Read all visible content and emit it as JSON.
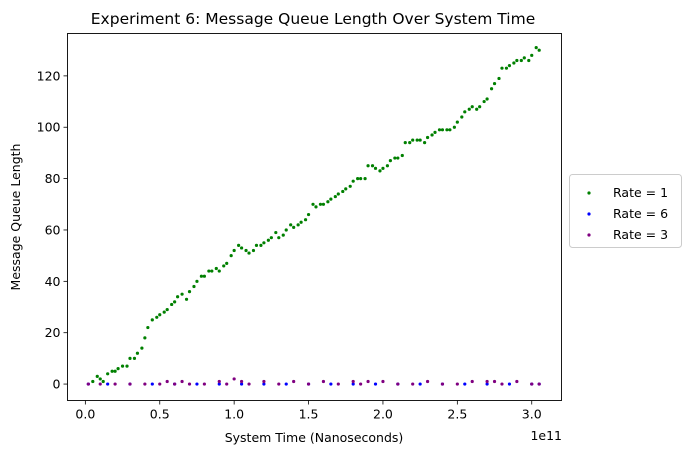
{
  "chart_data": {
    "type": "scatter",
    "title": "Experiment 6: Message Queue Length Over System Time",
    "xlabel": "System Time (Nanoseconds)",
    "ylabel": "Message Queue Length",
    "x_offset_label": "1e11",
    "xlim": [
      -0.12,
      3.2
    ],
    "ylim": [
      -6.4,
      136.5
    ],
    "x_ticks": [
      0.0,
      0.5,
      1.0,
      1.5,
      2.0,
      2.5,
      3.0
    ],
    "x_tick_labels": [
      "0.0",
      "0.5",
      "1.0",
      "1.5",
      "2.0",
      "2.5",
      "3.0"
    ],
    "y_ticks": [
      0,
      20,
      40,
      60,
      80,
      100,
      120
    ],
    "y_tick_labels": [
      "0",
      "20",
      "40",
      "60",
      "80",
      "100",
      "120"
    ],
    "grid": false,
    "legend_position": "center-right, outside plot",
    "series": [
      {
        "name": "Rate = 1",
        "color": "#008000",
        "x": [
          0.05,
          0.08,
          0.1,
          0.12,
          0.15,
          0.18,
          0.2,
          0.22,
          0.25,
          0.28,
          0.3,
          0.33,
          0.35,
          0.38,
          0.4,
          0.42,
          0.45,
          0.48,
          0.5,
          0.53,
          0.55,
          0.58,
          0.6,
          0.62,
          0.65,
          0.68,
          0.7,
          0.73,
          0.75,
          0.78,
          0.8,
          0.83,
          0.85,
          0.88,
          0.9,
          0.93,
          0.95,
          0.98,
          1.0,
          1.03,
          1.05,
          1.08,
          1.1,
          1.13,
          1.15,
          1.18,
          1.2,
          1.23,
          1.25,
          1.28,
          1.3,
          1.33,
          1.35,
          1.38,
          1.4,
          1.43,
          1.45,
          1.48,
          1.5,
          1.53,
          1.55,
          1.58,
          1.6,
          1.63,
          1.65,
          1.68,
          1.7,
          1.73,
          1.75,
          1.78,
          1.8,
          1.83,
          1.85,
          1.88,
          1.9,
          1.93,
          1.95,
          1.98,
          2.0,
          2.03,
          2.05,
          2.08,
          2.1,
          2.13,
          2.15,
          2.18,
          2.2,
          2.23,
          2.25,
          2.28,
          2.3,
          2.33,
          2.35,
          2.38,
          2.4,
          2.43,
          2.45,
          2.48,
          2.5,
          2.53,
          2.55,
          2.58,
          2.6,
          2.63,
          2.65,
          2.68,
          2.7,
          2.73,
          2.75,
          2.78,
          2.8,
          2.83,
          2.85,
          2.88,
          2.9,
          2.93,
          2.95,
          2.98,
          3.0,
          3.03,
          3.05
        ],
        "y": [
          1,
          3,
          2,
          1,
          4,
          5,
          5,
          6,
          7,
          7,
          10,
          10,
          12,
          14,
          18,
          22,
          25,
          26,
          27,
          28,
          29,
          31,
          32,
          34,
          35,
          33,
          36,
          38,
          40,
          42,
          42,
          44,
          44,
          45,
          44,
          46,
          47,
          50,
          52,
          54,
          53,
          52,
          51,
          52,
          54,
          54,
          55,
          56,
          57,
          59,
          57,
          58,
          60,
          62,
          61,
          62,
          63,
          64,
          66,
          70,
          69,
          70,
          70,
          71,
          72,
          73,
          74,
          75,
          76,
          77,
          79,
          80,
          80,
          80,
          85,
          85,
          84,
          83,
          84,
          85,
          87,
          88,
          88,
          89,
          94,
          94,
          95,
          95,
          95,
          94,
          96,
          97,
          98,
          99,
          99,
          99,
          99,
          100,
          102,
          104,
          106,
          107,
          108,
          107,
          108,
          110,
          111,
          115,
          117,
          119,
          123,
          123,
          124,
          125,
          126,
          126,
          127,
          126,
          128,
          131,
          130
        ]
      },
      {
        "name": "Rate = 6",
        "color": "#0000ff",
        "x": [
          0.02,
          0.15,
          0.3,
          0.45,
          0.6,
          0.75,
          0.9,
          1.05,
          1.2,
          1.35,
          1.5,
          1.65,
          1.8,
          1.95,
          2.1,
          2.25,
          2.4,
          2.55,
          2.7,
          2.85,
          3.0,
          3.05
        ],
        "y": [
          0,
          0,
          0,
          0,
          0,
          0,
          0,
          0,
          0,
          0,
          0,
          0,
          0,
          0,
          0,
          0,
          0,
          0,
          0,
          0,
          0,
          0
        ]
      },
      {
        "name": "Rate = 3",
        "color": "#800080",
        "x": [
          0.02,
          0.1,
          0.2,
          0.3,
          0.4,
          0.5,
          0.55,
          0.6,
          0.65,
          0.7,
          0.8,
          0.9,
          0.95,
          1.0,
          1.05,
          1.1,
          1.2,
          1.3,
          1.4,
          1.5,
          1.6,
          1.7,
          1.8,
          1.85,
          1.9,
          2.0,
          2.1,
          2.2,
          2.3,
          2.4,
          2.5,
          2.6,
          2.7,
          2.75,
          2.8,
          2.9,
          3.0,
          3.05
        ],
        "y": [
          0,
          0,
          0,
          0,
          0,
          0,
          1,
          0,
          1,
          0,
          0,
          1,
          0,
          2,
          1,
          0,
          1,
          0,
          1,
          0,
          1,
          0,
          1,
          0,
          1,
          1,
          0,
          0,
          1,
          0,
          0,
          1,
          1,
          1,
          0,
          1,
          0,
          0
        ]
      }
    ]
  }
}
